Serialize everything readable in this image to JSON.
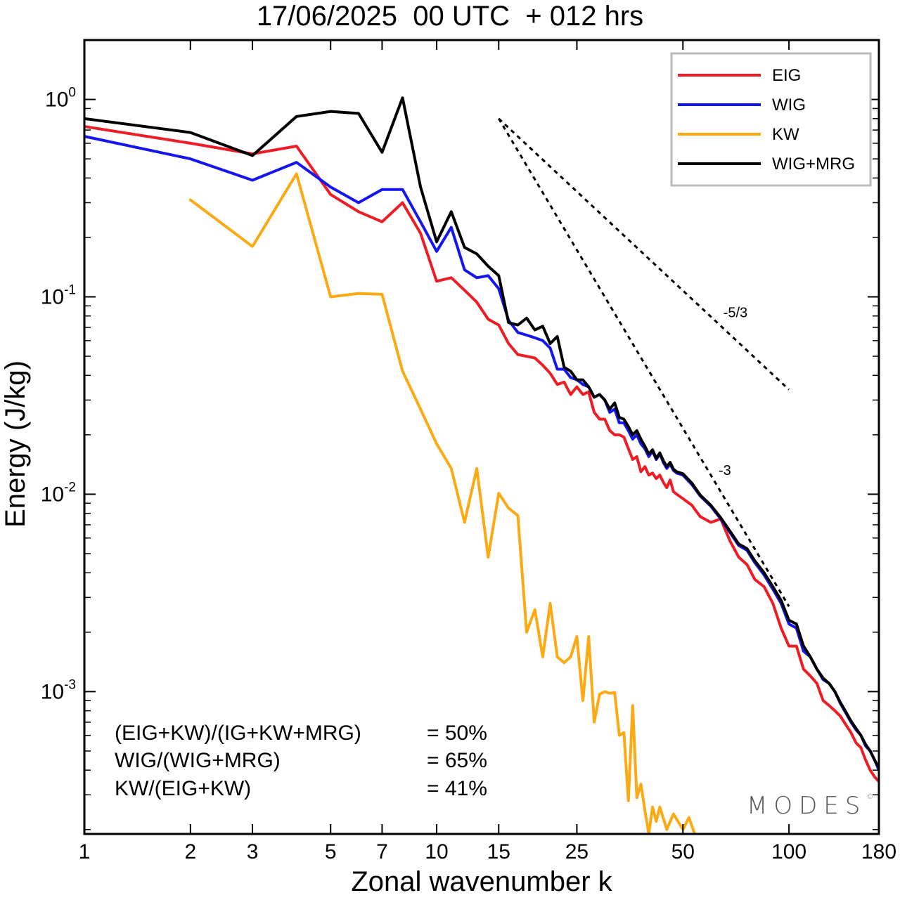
{
  "title": "17/06/2025  00 UTC  + 012 hrs",
  "watermark": {
    "text": "MODES",
    "mark": "©"
  },
  "stats": [
    {
      "label": "(EIG+KW)/(IG+KW+MRG)",
      "value": "= 50%"
    },
    {
      "label": "WIG/(WIG+MRG)",
      "value": "= 65%"
    },
    {
      "label": "KW/(EIG+KW)",
      "value": "= 41%"
    }
  ],
  "chart_data": {
    "type": "line",
    "title": "17/06/2025  00 UTC  + 012 hrs",
    "xlabel": "Zonal wavenumber k",
    "ylabel": "Energy (J/kg)",
    "xscale": "log",
    "yscale": "log",
    "xlim": [
      1,
      180
    ],
    "ylim": [
      0.00019,
      2.0
    ],
    "xticks": [
      1,
      2,
      3,
      5,
      7,
      10,
      15,
      25,
      50,
      100,
      180
    ],
    "xtick_labels": [
      "1",
      "2",
      "3",
      "5",
      "7",
      "10",
      "15",
      "25",
      "50",
      "100",
      "180"
    ],
    "yticks": [
      1,
      0.1,
      0.01,
      0.001
    ],
    "ytick_labels": [
      {
        "base": "10",
        "exp": "0"
      },
      {
        "base": "10",
        "exp": "-1"
      },
      {
        "base": "10",
        "exp": "-2"
      },
      {
        "base": "10",
        "exp": "-3"
      }
    ],
    "legend_position": "top-right",
    "grid": false,
    "series": [
      {
        "name": "EIG",
        "color": "#ee1c24",
        "points": [
          [
            1,
            0.73
          ],
          [
            2,
            0.6
          ],
          [
            3,
            0.53
          ],
          [
            4,
            0.58
          ],
          [
            5,
            0.33
          ],
          [
            6,
            0.27
          ],
          [
            7,
            0.24
          ],
          [
            8,
            0.3
          ],
          [
            9,
            0.21
          ],
          [
            10,
            0.12
          ],
          [
            11,
            0.125
          ],
          [
            12,
            0.108
          ],
          [
            13,
            0.094
          ],
          [
            14,
            0.077
          ],
          [
            15,
            0.072
          ],
          [
            16,
            0.058
          ],
          [
            17,
            0.051
          ],
          [
            18,
            0.05
          ],
          [
            19,
            0.049
          ],
          [
            20,
            0.045
          ],
          [
            21,
            0.041
          ],
          [
            22,
            0.036
          ],
          [
            23,
            0.037
          ],
          [
            24,
            0.032
          ],
          [
            25,
            0.035
          ],
          [
            26,
            0.032
          ],
          [
            27,
            0.033
          ],
          [
            28,
            0.026
          ],
          [
            29,
            0.024
          ],
          [
            30,
            0.024
          ],
          [
            31,
            0.021
          ],
          [
            32,
            0.02
          ],
          [
            33,
            0.02
          ],
          [
            34,
            0.0195
          ],
          [
            35,
            0.017
          ],
          [
            36,
            0.015
          ],
          [
            37,
            0.0155
          ],
          [
            38,
            0.013
          ],
          [
            39,
            0.0138
          ],
          [
            40,
            0.0125
          ],
          [
            41,
            0.0128
          ],
          [
            42,
            0.012
          ],
          [
            43,
            0.0125
          ],
          [
            44,
            0.0115
          ],
          [
            45,
            0.0108
          ],
          [
            46,
            0.0118
          ],
          [
            47,
            0.0103
          ],
          [
            48,
            0.01
          ],
          [
            50,
            0.0095
          ],
          [
            53,
            0.0088
          ],
          [
            56,
            0.0077
          ],
          [
            60,
            0.0072
          ],
          [
            64,
            0.0075
          ],
          [
            68,
            0.0058
          ],
          [
            72,
            0.0048
          ],
          [
            76,
            0.0044
          ],
          [
            80,
            0.0037
          ],
          [
            85,
            0.0034
          ],
          [
            90,
            0.0028
          ],
          [
            95,
            0.0021
          ],
          [
            100,
            0.0017
          ],
          [
            105,
            0.0017
          ],
          [
            110,
            0.0013
          ],
          [
            115,
            0.0012
          ],
          [
            120,
            0.0011
          ],
          [
            125,
            0.0009
          ],
          [
            130,
            0.00085
          ],
          [
            135,
            0.0008
          ],
          [
            140,
            0.00075
          ],
          [
            145,
            0.00068
          ],
          [
            150,
            0.00062
          ],
          [
            155,
            0.00055
          ],
          [
            160,
            0.00052
          ],
          [
            165,
            0.00045
          ],
          [
            170,
            0.0004
          ],
          [
            175,
            0.00037
          ],
          [
            180,
            0.00035
          ]
        ]
      },
      {
        "name": "WIG",
        "color": "#1515ee",
        "points": [
          [
            1,
            0.65
          ],
          [
            2,
            0.5
          ],
          [
            3,
            0.39
          ],
          [
            4,
            0.48
          ],
          [
            5,
            0.36
          ],
          [
            6,
            0.3
          ],
          [
            7,
            0.35
          ],
          [
            8,
            0.35
          ],
          [
            9,
            0.24
          ],
          [
            10,
            0.17
          ],
          [
            11,
            0.225
          ],
          [
            12,
            0.137
          ],
          [
            13,
            0.125
          ],
          [
            14,
            0.128
          ],
          [
            15,
            0.11
          ],
          [
            16,
            0.076
          ],
          [
            17,
            0.066
          ],
          [
            18,
            0.064
          ],
          [
            19,
            0.062
          ],
          [
            20,
            0.06
          ],
          [
            21,
            0.055
          ],
          [
            22,
            0.043
          ],
          [
            23,
            0.043
          ],
          [
            24,
            0.039
          ],
          [
            25,
            0.038
          ],
          [
            26,
            0.036
          ],
          [
            27,
            0.035
          ],
          [
            28,
            0.031
          ],
          [
            29,
            0.032
          ],
          [
            30,
            0.03
          ],
          [
            31,
            0.026
          ],
          [
            32,
            0.027
          ],
          [
            33,
            0.023
          ],
          [
            34,
            0.023
          ],
          [
            35,
            0.021
          ],
          [
            36,
            0.019
          ],
          [
            37,
            0.02
          ],
          [
            38,
            0.018
          ],
          [
            39,
            0.017
          ],
          [
            40,
            0.0155
          ],
          [
            41,
            0.0165
          ],
          [
            42,
            0.015
          ],
          [
            43,
            0.016
          ],
          [
            44,
            0.0145
          ],
          [
            45,
            0.0135
          ],
          [
            46,
            0.0142
          ],
          [
            47,
            0.0132
          ],
          [
            48,
            0.0128
          ],
          [
            50,
            0.0125
          ],
          [
            53,
            0.0112
          ],
          [
            56,
            0.0098
          ],
          [
            60,
            0.0087
          ],
          [
            64,
            0.0075
          ],
          [
            68,
            0.0064
          ],
          [
            72,
            0.0055
          ],
          [
            76,
            0.0052
          ],
          [
            80,
            0.0045
          ],
          [
            85,
            0.0039
          ],
          [
            90,
            0.0033
          ],
          [
            95,
            0.0028
          ],
          [
            100,
            0.0022
          ],
          [
            105,
            0.0021
          ],
          [
            110,
            0.0016
          ],
          [
            115,
            0.0015
          ],
          [
            120,
            0.0013
          ],
          [
            125,
            0.00115
          ],
          [
            130,
            0.0011
          ],
          [
            135,
            0.001
          ],
          [
            140,
            0.00087
          ],
          [
            145,
            0.00078
          ],
          [
            150,
            0.0007
          ],
          [
            155,
            0.00064
          ],
          [
            160,
            0.0006
          ],
          [
            165,
            0.00053
          ],
          [
            170,
            0.0005
          ],
          [
            175,
            0.00045
          ],
          [
            180,
            0.0004
          ]
        ]
      },
      {
        "name": "KW",
        "color": "#fcaa14",
        "points": [
          [
            2,
            0.31
          ],
          [
            3,
            0.18
          ],
          [
            4,
            0.42
          ],
          [
            5,
            0.1
          ],
          [
            6,
            0.104
          ],
          [
            7,
            0.103
          ],
          [
            8,
            0.042
          ],
          [
            9,
            0.027
          ],
          [
            10,
            0.018
          ],
          [
            11,
            0.0135
          ],
          [
            12,
            0.0072
          ],
          [
            13,
            0.0135
          ],
          [
            14,
            0.0048
          ],
          [
            15,
            0.0101
          ],
          [
            16,
            0.0085
          ],
          [
            17,
            0.0078
          ],
          [
            18,
            0.002
          ],
          [
            19,
            0.0026
          ],
          [
            20,
            0.0015
          ],
          [
            21,
            0.0028
          ],
          [
            22,
            0.0015
          ],
          [
            23,
            0.0014
          ],
          [
            24,
            0.0015
          ],
          [
            25,
            0.0019
          ],
          [
            26,
            0.0009
          ],
          [
            27,
            0.0019
          ],
          [
            28,
            0.0007
          ],
          [
            29,
            0.00097
          ],
          [
            30,
            0.001
          ],
          [
            31,
            0.00098
          ],
          [
            32,
            0.00099
          ],
          [
            33,
            0.0006
          ],
          [
            34,
            0.00062
          ],
          [
            35,
            0.00028
          ],
          [
            36,
            0.00085
          ],
          [
            37,
            0.00029
          ],
          [
            38,
            0.00034
          ],
          [
            39,
            0.00025
          ],
          [
            40,
            0.00019
          ],
          [
            41,
            0.00026
          ],
          [
            42,
            0.00022
          ],
          [
            43,
            0.00026
          ],
          [
            45,
            0.0002
          ],
          [
            47,
            0.00024
          ],
          [
            50,
            0.0002
          ],
          [
            52,
            0.00023
          ],
          [
            54,
            0.00019
          ]
        ]
      },
      {
        "name": "WIG+MRG",
        "color": "#000000",
        "points": [
          [
            1,
            0.8
          ],
          [
            2,
            0.68
          ],
          [
            3,
            0.52
          ],
          [
            4,
            0.82
          ],
          [
            5,
            0.87
          ],
          [
            6,
            0.85
          ],
          [
            7,
            0.54
          ],
          [
            8,
            1.02
          ],
          [
            9,
            0.36
          ],
          [
            10,
            0.19
          ],
          [
            11,
            0.27
          ],
          [
            12,
            0.178
          ],
          [
            13,
            0.165
          ],
          [
            14,
            0.143
          ],
          [
            15,
            0.128
          ],
          [
            16,
            0.074
          ],
          [
            17,
            0.072
          ],
          [
            18,
            0.078
          ],
          [
            19,
            0.068
          ],
          [
            20,
            0.071
          ],
          [
            21,
            0.058
          ],
          [
            22,
            0.063
          ],
          [
            23,
            0.044
          ],
          [
            24,
            0.042
          ],
          [
            25,
            0.038
          ],
          [
            26,
            0.038
          ],
          [
            27,
            0.035
          ],
          [
            28,
            0.031
          ],
          [
            29,
            0.032
          ],
          [
            30,
            0.03
          ],
          [
            31,
            0.027
          ],
          [
            32,
            0.029
          ],
          [
            33,
            0.0245
          ],
          [
            34,
            0.024
          ],
          [
            35,
            0.022
          ],
          [
            36,
            0.02
          ],
          [
            37,
            0.021
          ],
          [
            38,
            0.019
          ],
          [
            39,
            0.0175
          ],
          [
            40,
            0.016
          ],
          [
            41,
            0.0168
          ],
          [
            42,
            0.0152
          ],
          [
            43,
            0.0162
          ],
          [
            44,
            0.0148
          ],
          [
            45,
            0.0138
          ],
          [
            46,
            0.0145
          ],
          [
            47,
            0.0134
          ],
          [
            48,
            0.013
          ],
          [
            50,
            0.0127
          ],
          [
            53,
            0.0114
          ],
          [
            56,
            0.0099
          ],
          [
            60,
            0.0088
          ],
          [
            64,
            0.0076
          ],
          [
            68,
            0.0065
          ],
          [
            72,
            0.0056
          ],
          [
            76,
            0.0053
          ],
          [
            80,
            0.0046
          ],
          [
            85,
            0.004
          ],
          [
            90,
            0.0034
          ],
          [
            95,
            0.0029
          ],
          [
            100,
            0.0023
          ],
          [
            105,
            0.0022
          ],
          [
            110,
            0.0017
          ],
          [
            115,
            0.0015
          ],
          [
            120,
            0.0013
          ],
          [
            125,
            0.00117
          ],
          [
            130,
            0.0011
          ],
          [
            135,
            0.001
          ],
          [
            140,
            0.00088
          ],
          [
            145,
            0.00079
          ],
          [
            150,
            0.00071
          ],
          [
            155,
            0.00065
          ],
          [
            160,
            0.0006
          ],
          [
            165,
            0.00054
          ],
          [
            170,
            0.0005
          ],
          [
            175,
            0.00045
          ],
          [
            180,
            0.00041
          ]
        ]
      }
    ],
    "reference_lines": [
      {
        "label": "-5/3",
        "slope": -1.6667,
        "x": [
          15,
          100
        ],
        "y0": 0.8
      },
      {
        "label": "-3",
        "slope": -3,
        "x": [
          15,
          100
        ],
        "y0": 0.8
      }
    ]
  }
}
